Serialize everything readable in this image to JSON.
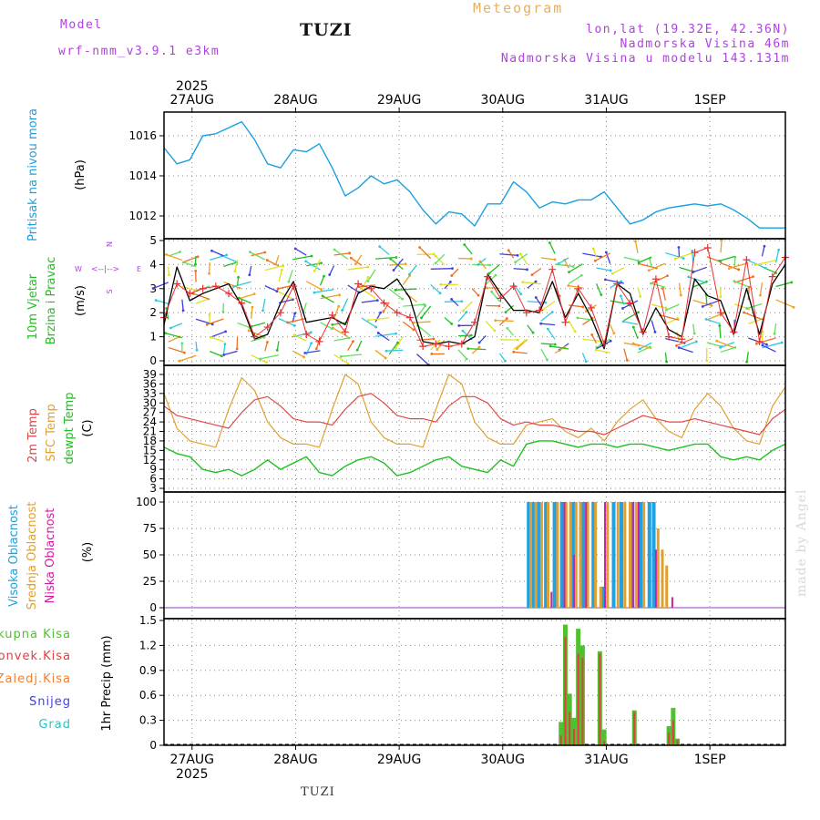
{
  "header": {
    "model_label": "Model",
    "model_name": "wrf-nmm_v3.9.1 e3km",
    "title": "Meteogram",
    "station": "TUZI",
    "coords": "lon,lat (19.32E, 42.36N)",
    "elevation": "Nadmorska Visina 46m",
    "model_elevation": "Nadmorska Visina u modelu 143.131m",
    "station_bottom": "TUZI",
    "watermark": "made by Angel"
  },
  "colors": {
    "pressure": "#1aa0e0",
    "wind_speed": "#000000",
    "gust": "#e83030",
    "t2m": "#e04848",
    "sfc": "#e0a030",
    "dewpt": "#20c020",
    "cloud_high": "#20a0e0",
    "cloud_mid": "#e0a030",
    "cloud_low": "#d020a0",
    "precip_total": "#50c030",
    "precip_conv": "#e04040",
    "precip_froz": "#f08030",
    "snow": "#4040e0",
    "grad": "#30c0c0",
    "compass": "#b040e0"
  },
  "time_axis": {
    "year_label": "2025",
    "day_labels": [
      "27AUG",
      "28AUG",
      "29AUG",
      "30AUG",
      "31AUG",
      "1SEP"
    ]
  },
  "chart_data": [
    {
      "type": "line",
      "panel": "pressure",
      "ylabel": "Pritisak na nivou mora",
      "unit": "(hPa)",
      "ylim": [
        1011,
        1017.5
      ],
      "yticks": [
        1012,
        1014,
        1016
      ],
      "x_hours": [
        0,
        3,
        6,
        9,
        12,
        15,
        18,
        21,
        24,
        27,
        30,
        33,
        36,
        39,
        42,
        45,
        48,
        51,
        54,
        57,
        60,
        63,
        66,
        69,
        72,
        75,
        78,
        81,
        84,
        87,
        90,
        93,
        96,
        99,
        102,
        105,
        108,
        111,
        114,
        117,
        120,
        123,
        126,
        129,
        132,
        135,
        138,
        141,
        144
      ],
      "values": [
        1015.4,
        1014.6,
        1014.8,
        1016.0,
        1016.1,
        1016.4,
        1016.7,
        1015.8,
        1014.6,
        1014.4,
        1015.3,
        1015.2,
        1015.6,
        1014.4,
        1013.0,
        1013.4,
        1014.0,
        1013.6,
        1013.8,
        1013.2,
        1012.3,
        1011.6,
        1012.2,
        1012.1,
        1011.5,
        1012.6,
        1012.6,
        1013.7,
        1013.2,
        1012.4,
        1012.7,
        1012.6,
        1012.8,
        1012.8,
        1013.2,
        1012.4,
        1011.6,
        1011.8,
        1012.2,
        1012.4,
        1012.5,
        1012.6,
        1012.5,
        1012.6,
        1012.3,
        1011.9,
        1011.4,
        1011.4,
        1011.4
      ]
    },
    {
      "type": "line",
      "panel": "wind",
      "ylabel": "10m Vjetar / Brzina i Pravac",
      "unit": "(m/s)",
      "ylim": [
        0,
        5
      ],
      "yticks": [
        0,
        1,
        2,
        3,
        4,
        5
      ],
      "compass": {
        "w": "W",
        "e": "E",
        "n": "N",
        "s": "S",
        "arrows": "<--|-->"
      },
      "series": [
        {
          "name": "speed",
          "x_hours": [
            0,
            3,
            6,
            9,
            12,
            15,
            18,
            21,
            24,
            27,
            30,
            33,
            36,
            39,
            42,
            45,
            48,
            51,
            54,
            57,
            60,
            63,
            66,
            69,
            72,
            75,
            78,
            81,
            84,
            87,
            90,
            93,
            96,
            99,
            102,
            105,
            108,
            111,
            114,
            117,
            120,
            123,
            126,
            129,
            132,
            135,
            138,
            141,
            144
          ],
          "values": [
            1.5,
            3.9,
            2.5,
            2.8,
            3.0,
            3.2,
            2.3,
            0.9,
            1.1,
            2.4,
            3.3,
            1.6,
            1.7,
            1.8,
            1.5,
            2.8,
            3.1,
            3.0,
            3.4,
            2.6,
            0.8,
            0.7,
            0.8,
            0.7,
            1.0,
            3.6,
            2.8,
            2.1,
            2.1,
            2.0,
            3.3,
            1.8,
            2.8,
            1.8,
            0.5,
            3.2,
            2.8,
            1.1,
            2.2,
            1.3,
            1.0,
            3.4,
            2.7,
            2.5,
            1.1,
            3.0,
            1.1,
            3.2,
            4.0
          ]
        },
        {
          "name": "gust",
          "x_hours": [
            0,
            3,
            6,
            9,
            12,
            15,
            18,
            21,
            24,
            27,
            30,
            33,
            36,
            39,
            42,
            45,
            48,
            51,
            54,
            57,
            60,
            63,
            66,
            69,
            72,
            75,
            78,
            81,
            84,
            87,
            90,
            93,
            96,
            99,
            102,
            105,
            108,
            111,
            114,
            117,
            120,
            123,
            126,
            129,
            132,
            135,
            138,
            141,
            144
          ],
          "values": [
            1.8,
            3.2,
            2.8,
            3.0,
            3.1,
            2.8,
            2.4,
            1.0,
            1.4,
            2.0,
            3.1,
            1.1,
            0.8,
            1.9,
            1.2,
            3.2,
            3.0,
            2.4,
            2.0,
            1.8,
            0.6,
            0.7,
            0.6,
            0.7,
            1.6,
            3.5,
            2.6,
            3.1,
            2.0,
            2.1,
            3.8,
            1.6,
            3.0,
            2.2,
            0.7,
            3.2,
            2.4,
            1.2,
            3.4,
            1.0,
            0.9,
            4.5,
            4.7,
            2.0,
            1.2,
            4.2,
            0.8,
            3.5,
            4.3
          ]
        }
      ]
    },
    {
      "type": "line",
      "panel": "temperature",
      "ylabel": "2m Temp / SFC Temp / dewpt Temp",
      "unit": "(C)",
      "ylim": [
        3,
        40
      ],
      "yticks": [
        3,
        6,
        9,
        12,
        15,
        18,
        21,
        24,
        27,
        30,
        33,
        36,
        39
      ],
      "series": [
        {
          "name": "2m Temp",
          "x_hours": [
            0,
            3,
            6,
            9,
            12,
            15,
            18,
            21,
            24,
            27,
            30,
            33,
            36,
            39,
            42,
            45,
            48,
            51,
            54,
            57,
            60,
            63,
            66,
            69,
            72,
            75,
            78,
            81,
            84,
            87,
            90,
            93,
            96,
            99,
            102,
            105,
            108,
            111,
            114,
            117,
            120,
            123,
            126,
            129,
            132,
            135,
            138,
            141,
            144
          ],
          "values": [
            29,
            26,
            25,
            24,
            23,
            22,
            27,
            31,
            32,
            29,
            25,
            24,
            24,
            23,
            28,
            32,
            33,
            30,
            26,
            25,
            25,
            24,
            29,
            32,
            32,
            30,
            25,
            23,
            24,
            23,
            23,
            22,
            21,
            21,
            20,
            22,
            24,
            26,
            25,
            24,
            24,
            25,
            24,
            23,
            22,
            21,
            20,
            25,
            28
          ]
        },
        {
          "name": "SFC Temp",
          "x_hours": [
            0,
            3,
            6,
            9,
            12,
            15,
            18,
            21,
            24,
            27,
            30,
            33,
            36,
            39,
            42,
            45,
            48,
            51,
            54,
            57,
            60,
            63,
            66,
            69,
            72,
            75,
            78,
            81,
            84,
            87,
            90,
            93,
            96,
            99,
            102,
            105,
            108,
            111,
            114,
            117,
            120,
            123,
            126,
            129,
            132,
            135,
            138,
            141,
            144
          ],
          "values": [
            33,
            22,
            18,
            17,
            16,
            28,
            38,
            34,
            24,
            19,
            17,
            17,
            16,
            28,
            39,
            36,
            24,
            19,
            17,
            17,
            16,
            28,
            39,
            36,
            24,
            19,
            17,
            17,
            23,
            24,
            25,
            21,
            19,
            22,
            18,
            24,
            28,
            31,
            25,
            21,
            19,
            28,
            33,
            29,
            22,
            18,
            17,
            29,
            35
          ]
        },
        {
          "name": "dewpt Temp",
          "x_hours": [
            0,
            3,
            6,
            9,
            12,
            15,
            18,
            21,
            24,
            27,
            30,
            33,
            36,
            39,
            42,
            45,
            48,
            51,
            54,
            57,
            60,
            63,
            66,
            69,
            72,
            75,
            78,
            81,
            84,
            87,
            90,
            93,
            96,
            99,
            102,
            105,
            108,
            111,
            114,
            117,
            120,
            123,
            126,
            129,
            132,
            135,
            138,
            141,
            144
          ],
          "values": [
            16,
            14,
            13,
            9,
            8,
            9,
            7,
            9,
            12,
            9,
            11,
            13,
            8,
            7,
            10,
            12,
            13,
            11,
            7,
            8,
            10,
            12,
            13,
            10,
            9,
            8,
            12,
            10,
            17,
            18,
            18,
            17,
            16,
            17,
            17,
            16,
            17,
            17,
            16,
            15,
            16,
            17,
            17,
            13,
            12,
            13,
            12,
            15,
            17
          ]
        }
      ]
    },
    {
      "type": "bar",
      "panel": "clouds",
      "ylabel": "Visoka Oblacnost / Srednja Oblacnost / Niska Oblacnost",
      "unit": "(%)",
      "ylim": [
        0,
        100
      ],
      "yticks": [
        0,
        25,
        50,
        75,
        100
      ],
      "series": [
        {
          "name": "Visoka Oblacnost",
          "x_hours": [
            84.5,
            85.5,
            86.8,
            88.5,
            90.5,
            92.2,
            94.8,
            97.2,
            99.5,
            101.8,
            104.2,
            106.0,
            108.5,
            110.5,
            112.5,
            113.5
          ],
          "values": [
            100,
            100,
            100,
            100,
            100,
            100,
            100,
            100,
            100,
            20,
            100,
            100,
            100,
            100,
            100,
            100
          ]
        },
        {
          "name": "Srednja Oblacnost",
          "x_hours": [
            85.0,
            86.2,
            87.5,
            89.0,
            91.2,
            93.2,
            94.2,
            95.5,
            96.5,
            98.2,
            100.0,
            101.2,
            102.8,
            105.2,
            106.8,
            108.0,
            109.5,
            111.2,
            114.5,
            115.5,
            116.5
          ],
          "values": [
            100,
            100,
            100,
            100,
            100,
            100,
            100,
            100,
            100,
            100,
            100,
            20,
            100,
            100,
            100,
            100,
            100,
            100,
            75,
            55,
            40
          ]
        },
        {
          "name": "Niska Oblacnost",
          "x_hours": [
            89.8,
            92.8,
            95.0,
            97.8,
            102.2,
            108.8,
            110.0,
            114.0,
            117.8
          ],
          "values": [
            15,
            100,
            50,
            100,
            100,
            100,
            100,
            55,
            10
          ]
        }
      ]
    },
    {
      "type": "bar",
      "panel": "precipitation",
      "ylabel": "1hr Precip (mm)",
      "legend": [
        "Ukupna Kisa",
        "Konvek.Kisa",
        "Zaledj.Kisa",
        "Snijeg",
        "Grad"
      ],
      "ylim": [
        0,
        1.5
      ],
      "yticks": [
        0,
        0.3,
        0.6,
        0.9,
        1.2,
        1.5
      ],
      "series": [
        {
          "name": "Ukupna Kisa",
          "x_hours": [
            92.0,
            93.0,
            94.0,
            95.0,
            96.0,
            97.0,
            101.0,
            102.0,
            109.0,
            117.0,
            118.0,
            119.0
          ],
          "values": [
            0.28,
            1.45,
            0.62,
            0.33,
            1.4,
            1.2,
            1.13,
            0.19,
            0.42,
            0.23,
            0.45,
            0.08
          ]
        },
        {
          "name": "Konvek.Kisa",
          "x_hours": [
            92.0,
            93.0,
            94.0,
            95.0,
            96.0,
            97.0,
            101.0,
            102.0,
            109.0,
            117.0,
            118.0,
            119.0
          ],
          "values": [
            0.12,
            1.3,
            0.4,
            0.2,
            1.1,
            1.05,
            1.1,
            0.05,
            0.4,
            0.15,
            0.3,
            0.06
          ]
        }
      ]
    }
  ]
}
